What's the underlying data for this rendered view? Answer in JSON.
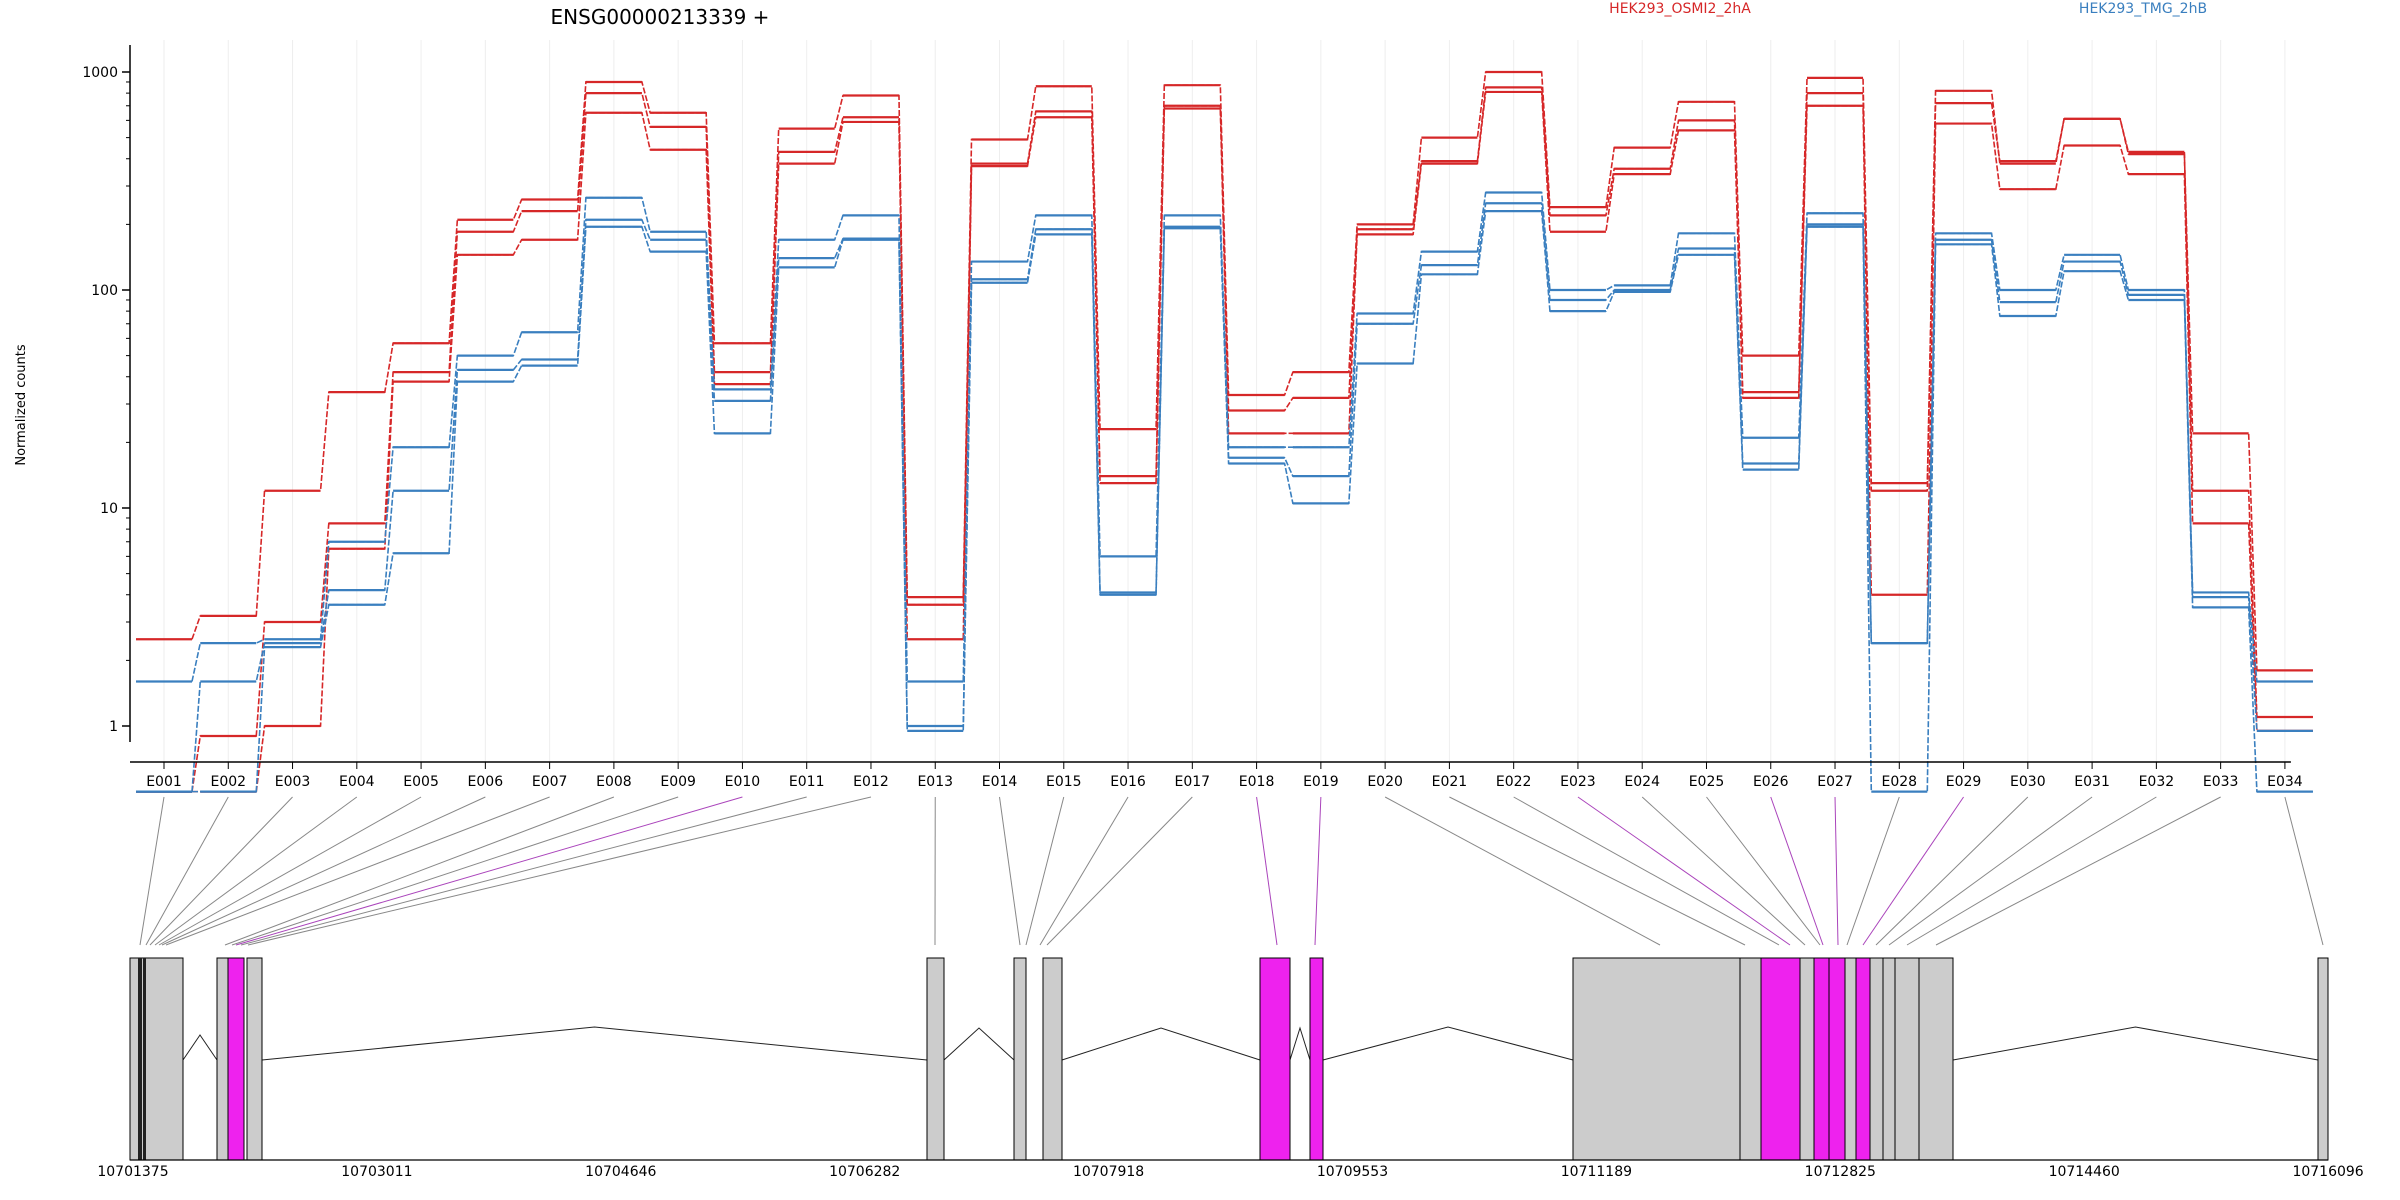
{
  "chart_data": {
    "type": "line",
    "title": "ENSG00000213339 +",
    "ylabel": "Normalized counts",
    "yscale": "log",
    "ylim": [
      0.5,
      1200
    ],
    "yticks": [
      1,
      10,
      100,
      1000
    ],
    "ytick_labels": [
      "1",
      "10",
      "100",
      "1000"
    ],
    "categories": [
      "E001",
      "E002",
      "E003",
      "E004",
      "E005",
      "E006",
      "E007",
      "E008",
      "E009",
      "E010",
      "E011",
      "E012",
      "E013",
      "E014",
      "E015",
      "E016",
      "E017",
      "E018",
      "E019",
      "E020",
      "E021",
      "E022",
      "E023",
      "E024",
      "E025",
      "E026",
      "E027",
      "E028",
      "E029",
      "E030",
      "E031",
      "E032",
      "E033",
      "E034"
    ],
    "legend": [
      {
        "label": "HEK293_OSMI2_2hA",
        "color": "#d62728"
      },
      {
        "label": "HEK293_TMG_2hB",
        "color": "#3a7fbf"
      }
    ],
    "series": [
      {
        "color": "#d62728",
        "values": [
          2.5,
          3.2,
          12,
          34,
          57,
          210,
          260,
          900,
          650,
          57,
          550,
          780,
          3.9,
          490,
          860,
          23,
          870,
          33,
          42,
          200,
          500,
          1000,
          240,
          450,
          730,
          50,
          940,
          13,
          820,
          380,
          610,
          420,
          22,
          1.8
        ]
      },
      {
        "color": "#d62728",
        "values": [
          0.5,
          0.9,
          3.0,
          8.5,
          42,
          185,
          230,
          800,
          560,
          42,
          430,
          620,
          3.6,
          380,
          660,
          14,
          700,
          28,
          32,
          190,
          390,
          850,
          220,
          360,
          600,
          34,
          800,
          12,
          720,
          390,
          610,
          430,
          12,
          1.1
        ]
      },
      {
        "color": "#d62728",
        "values": [
          0.5,
          0.5,
          1.0,
          6.5,
          38,
          145,
          170,
          650,
          440,
          37,
          380,
          590,
          2.5,
          370,
          620,
          13,
          680,
          22,
          22,
          180,
          380,
          810,
          185,
          340,
          540,
          32,
          700,
          4.0,
          580,
          290,
          460,
          340,
          8.5,
          0.95
        ]
      },
      {
        "color": "#3a7fbf",
        "values": [
          1.6,
          2.4,
          2.5,
          7.0,
          19,
          50,
          64,
          265,
          185,
          35,
          170,
          220,
          1.6,
          135,
          220,
          6.0,
          220,
          19,
          19,
          78,
          150,
          280,
          100,
          105,
          182,
          21,
          225,
          2.4,
          182,
          100,
          145,
          100,
          4.1,
          1.6
        ]
      },
      {
        "color": "#3a7fbf",
        "values": [
          0.5,
          1.6,
          2.4,
          4.2,
          12,
          43,
          48,
          210,
          170,
          31,
          140,
          172,
          1.0,
          112,
          190,
          4.1,
          195,
          17,
          14,
          70,
          130,
          250,
          90,
          100,
          155,
          16,
          200,
          2.4,
          170,
          88,
          135,
          95,
          3.9,
          0.95
        ]
      },
      {
        "color": "#3a7fbf",
        "values": [
          0.5,
          0.5,
          2.3,
          3.6,
          6.2,
          38,
          45,
          195,
          150,
          22,
          127,
          170,
          0.95,
          108,
          180,
          4.0,
          192,
          16,
          10.5,
          46,
          118,
          230,
          80,
          98,
          145,
          15,
          195,
          0.5,
          162,
          76,
          122,
          90,
          3.5,
          0.5
        ]
      }
    ],
    "gene_model": {
      "coord_ticks": [
        "10701375",
        "10703011",
        "10704646",
        "10706282",
        "10707918",
        "10709553",
        "10711189",
        "10712825",
        "10714460",
        "10716096"
      ],
      "highlighted_exons": [
        "E010",
        "E018",
        "E019",
        "E023",
        "E026",
        "E027",
        "E029"
      ],
      "colors": {
        "exon": "#cccccc",
        "highlight": "#ee22ee",
        "connector": "#888888",
        "connector_highlight": "#aa44bb"
      }
    }
  }
}
